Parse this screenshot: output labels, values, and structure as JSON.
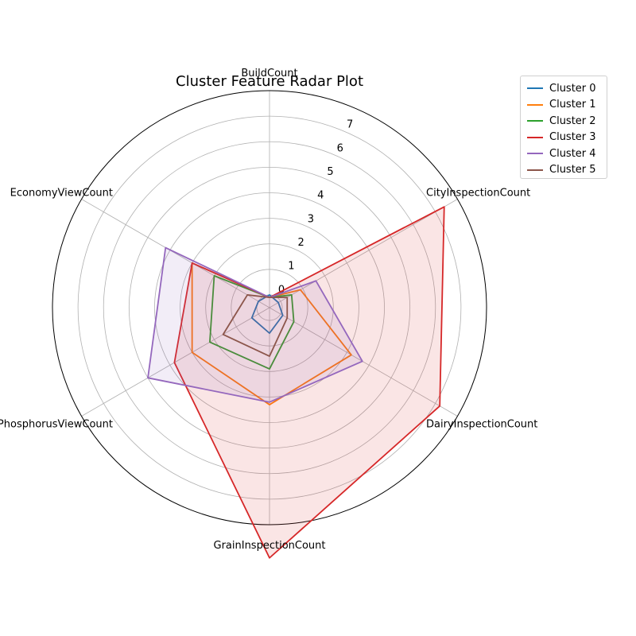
{
  "chart_data": {
    "type": "radar",
    "title": "Cluster Feature Radar Plot",
    "axes": [
      "BuildCount",
      "CityInspectionCount",
      "DairyInspectionCount",
      "GrainInspectionCount",
      "PhosphorusViewCount",
      "EconomyViewCount"
    ],
    "rlim": [
      -0.5,
      8.0
    ],
    "rticks": [
      0,
      1,
      2,
      3,
      4,
      5,
      6,
      7
    ],
    "grid": true,
    "legend_position": "upper-right, outside plot",
    "series": [
      {
        "name": "Cluster 0",
        "color": "#1f77b4",
        "values": [
          0.0,
          -0.1,
          0.1,
          0.5,
          0.3,
          0.0
        ],
        "fill": false
      },
      {
        "name": "Cluster 1",
        "color": "#ff7f0e",
        "values": [
          -0.1,
          0.9,
          3.2,
          3.3,
          3.0,
          3.0
        ],
        "fill": false
      },
      {
        "name": "Cluster 2",
        "color": "#2ca02c",
        "values": [
          -0.1,
          0.5,
          0.6,
          1.9,
          2.2,
          2.0
        ],
        "fill": false
      },
      {
        "name": "Cluster 3",
        "color": "#d62728",
        "values": [
          -0.1,
          7.4,
          7.2,
          9.3,
          3.8,
          3.0
        ],
        "fill": true
      },
      {
        "name": "Cluster 4",
        "color": "#9467bd",
        "values": [
          -0.1,
          1.6,
          3.7,
          3.2,
          5.0,
          4.2
        ],
        "fill": true
      },
      {
        "name": "Cluster 5",
        "color": "#8c564b",
        "values": [
          -0.1,
          0.3,
          0.3,
          1.4,
          1.6,
          0.5
        ],
        "fill": false
      }
    ]
  }
}
